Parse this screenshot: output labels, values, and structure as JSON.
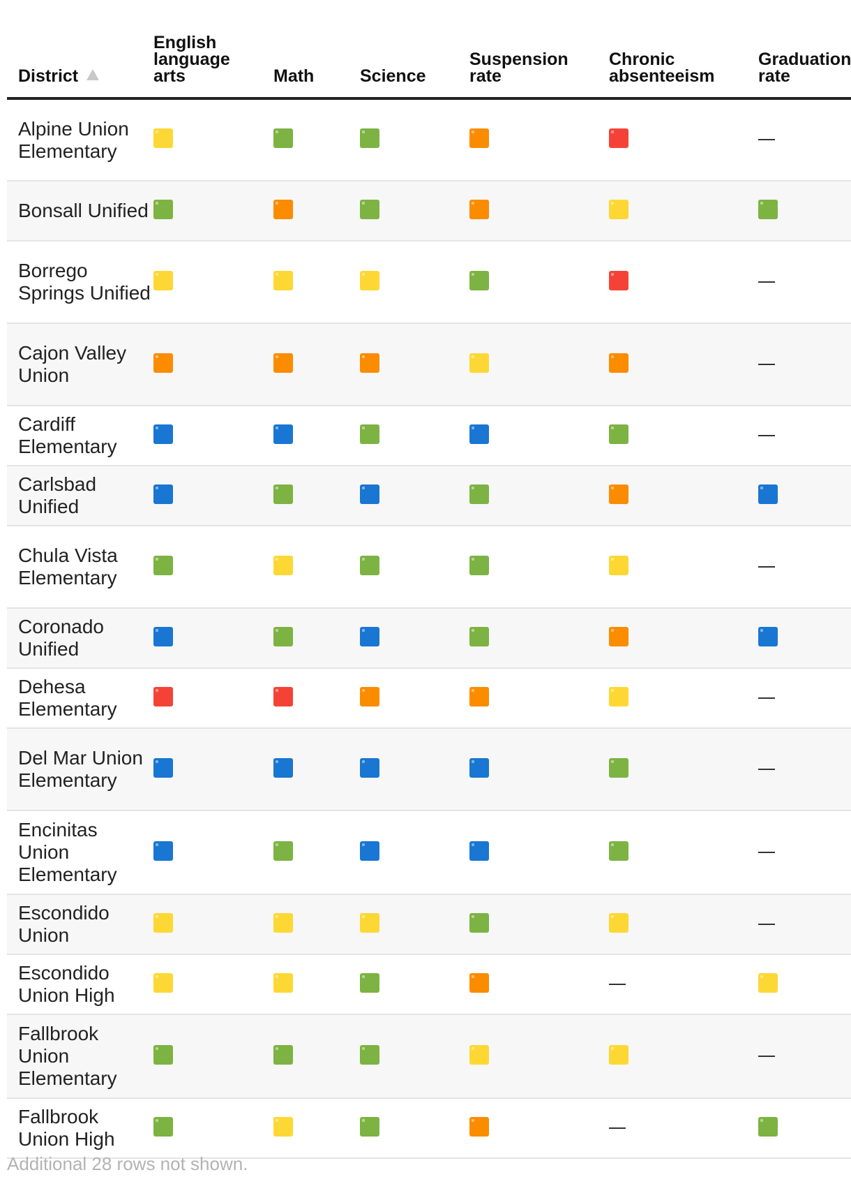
{
  "colors": {
    "blue": "#1976d2",
    "green": "#7cb342",
    "yellow": "#fdd835",
    "orange": "#fb8c00",
    "red": "#f44336"
  },
  "columns": [
    {
      "key": "district",
      "label": "District"
    },
    {
      "key": "ela",
      "label": "English language arts"
    },
    {
      "key": "math",
      "label": "Math"
    },
    {
      "key": "science",
      "label": "Science"
    },
    {
      "key": "suspension",
      "label": "Suspension rate"
    },
    {
      "key": "absenteeism",
      "label": "Chronic absenteeism"
    },
    {
      "key": "graduation",
      "label": "Graduation rate"
    }
  ],
  "sort": {
    "column": "district",
    "direction": "ascending",
    "icon": "sort-ascending-icon"
  },
  "rows": [
    {
      "district": "Alpine Union Elementary",
      "ela": "yellow",
      "math": "green",
      "science": "green",
      "suspension": "orange",
      "absenteeism": "red",
      "graduation": "none"
    },
    {
      "district": "Bonsall Unified",
      "ela": "green",
      "math": "orange",
      "science": "green",
      "suspension": "orange",
      "absenteeism": "yellow",
      "graduation": "green"
    },
    {
      "district": "Borrego Springs Unified",
      "ela": "yellow",
      "math": "yellow",
      "science": "yellow",
      "suspension": "green",
      "absenteeism": "red",
      "graduation": "none"
    },
    {
      "district": "Cajon Valley Union",
      "ela": "orange",
      "math": "orange",
      "science": "orange",
      "suspension": "yellow",
      "absenteeism": "orange",
      "graduation": "none"
    },
    {
      "district": "Cardiff Elementary",
      "ela": "blue",
      "math": "blue",
      "science": "green",
      "suspension": "blue",
      "absenteeism": "green",
      "graduation": "none"
    },
    {
      "district": "Carlsbad Unified",
      "ela": "blue",
      "math": "green",
      "science": "blue",
      "suspension": "green",
      "absenteeism": "orange",
      "graduation": "blue"
    },
    {
      "district": "Chula Vista Elementary",
      "ela": "green",
      "math": "yellow",
      "science": "green",
      "suspension": "green",
      "absenteeism": "yellow",
      "graduation": "none"
    },
    {
      "district": "Coronado Unified",
      "ela": "blue",
      "math": "green",
      "science": "blue",
      "suspension": "green",
      "absenteeism": "orange",
      "graduation": "blue"
    },
    {
      "district": "Dehesa Elementary",
      "ela": "red",
      "math": "red",
      "science": "orange",
      "suspension": "orange",
      "absenteeism": "yellow",
      "graduation": "none"
    },
    {
      "district": "Del Mar Union Elementary",
      "ela": "blue",
      "math": "blue",
      "science": "blue",
      "suspension": "blue",
      "absenteeism": "green",
      "graduation": "none"
    },
    {
      "district": "Encinitas Union Elementary",
      "ela": "blue",
      "math": "green",
      "science": "blue",
      "suspension": "blue",
      "absenteeism": "green",
      "graduation": "none"
    },
    {
      "district": "Escondido Union",
      "ela": "yellow",
      "math": "yellow",
      "science": "yellow",
      "suspension": "green",
      "absenteeism": "yellow",
      "graduation": "none"
    },
    {
      "district": "Escondido Union High",
      "ela": "yellow",
      "math": "yellow",
      "science": "green",
      "suspension": "orange",
      "absenteeism": "none",
      "graduation": "yellow"
    },
    {
      "district": "Fallbrook Union Elementary",
      "ela": "green",
      "math": "green",
      "science": "green",
      "suspension": "yellow",
      "absenteeism": "yellow",
      "graduation": "none"
    },
    {
      "district": "Fallbrook Union High",
      "ela": "green",
      "math": "yellow",
      "science": "green",
      "suspension": "orange",
      "absenteeism": "none",
      "graduation": "green"
    }
  ],
  "row_line_counts": [
    3,
    2,
    3,
    3,
    2,
    2,
    3,
    2,
    2,
    3,
    3,
    2,
    2,
    3,
    2
  ],
  "footnote": "Additional 28 rows not shown."
}
